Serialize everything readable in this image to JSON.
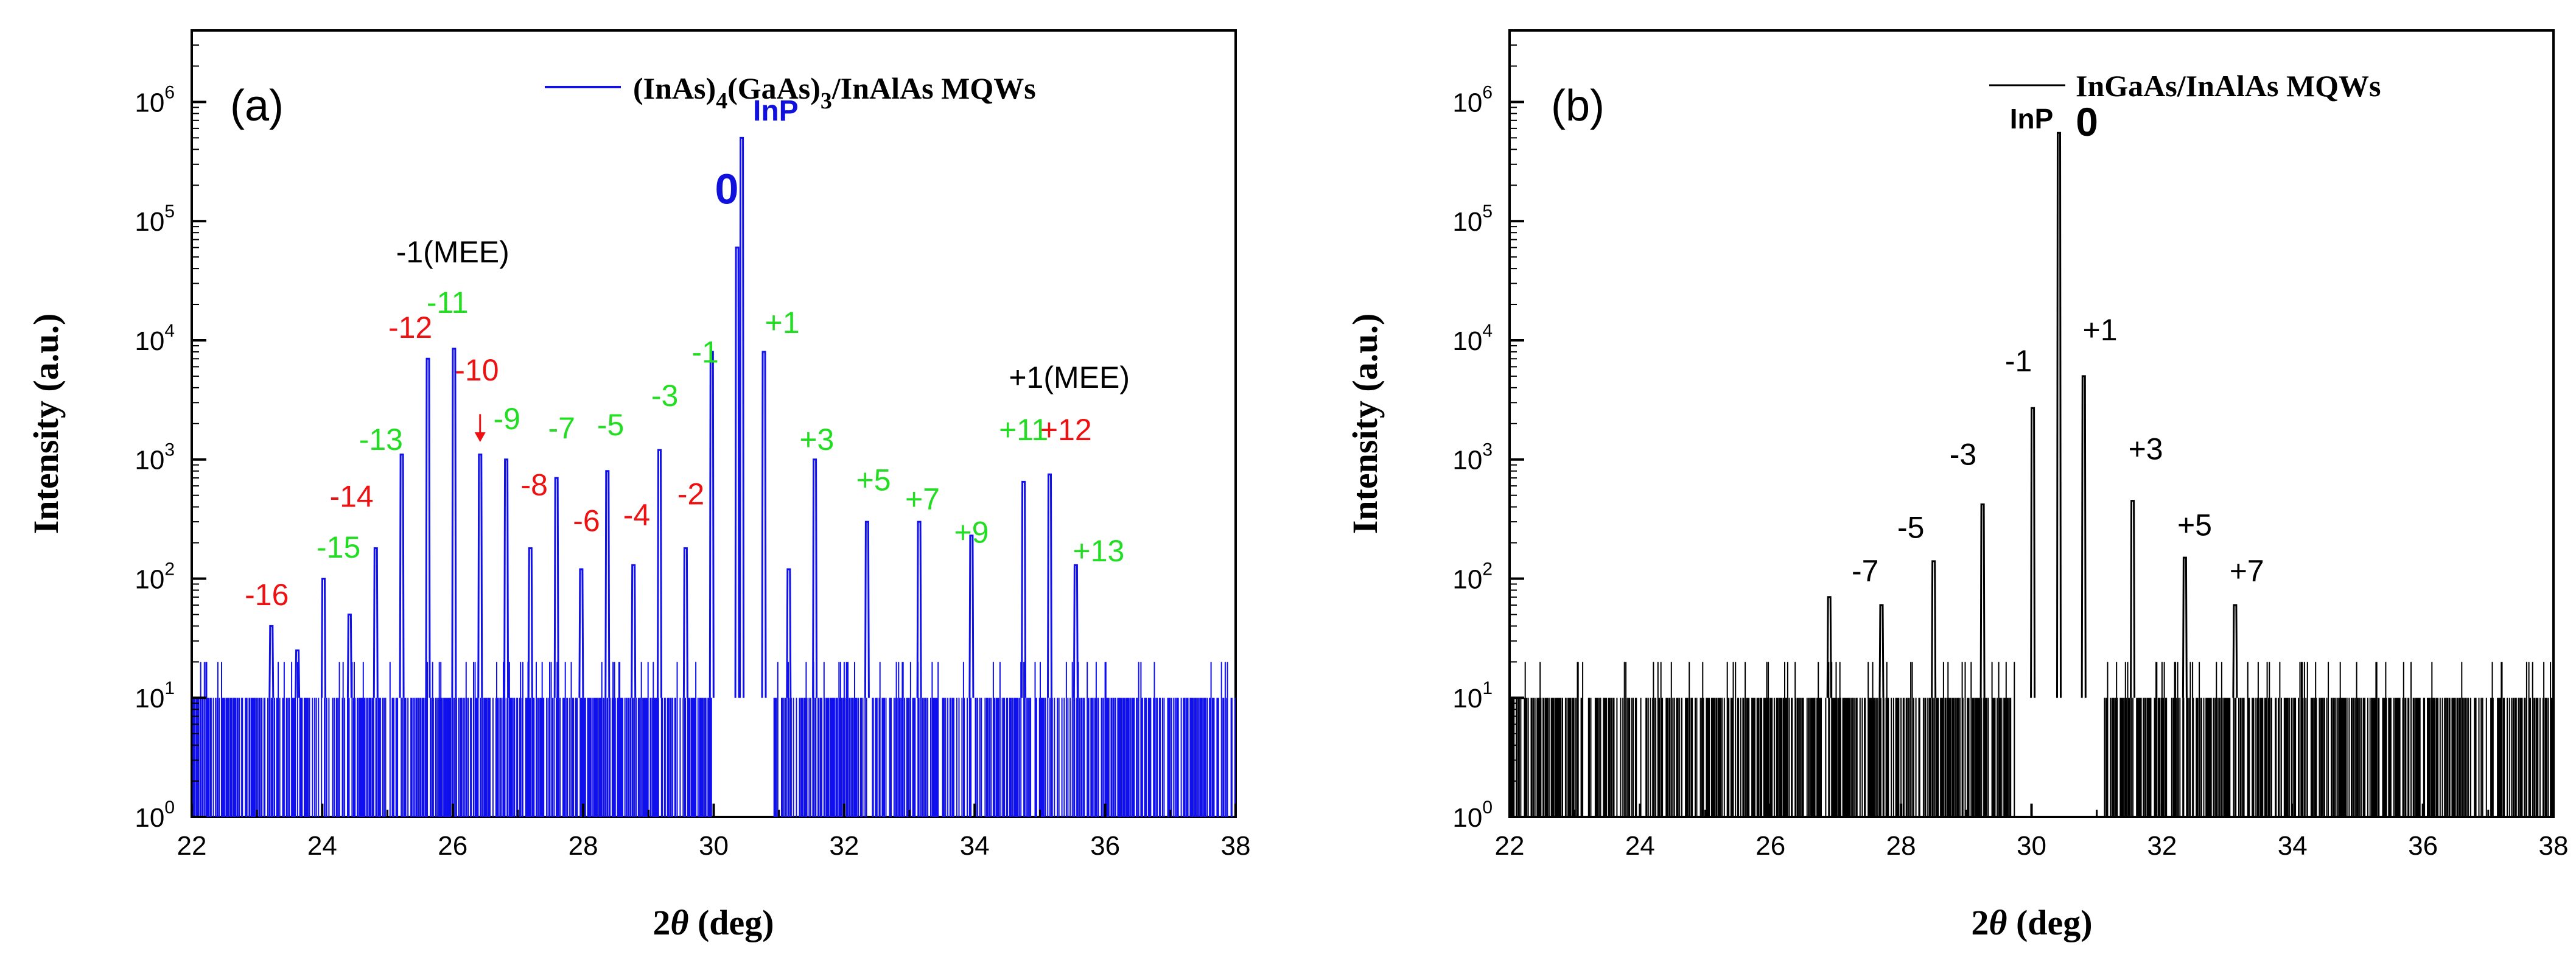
{
  "chart_data": [
    {
      "type": "line",
      "panel_label": "(a)",
      "legend": "(InAs)4(GaAs)3/InAlAs MQWs",
      "legend_parts": {
        "p1": "(InAs)",
        "s1": "4",
        "p2": "(GaAs)",
        "s2": "3",
        "p3": "/InAlAs MQWs"
      },
      "xlabel_main": "2",
      "xlabel_theta": "θ",
      "xlabel_unit": " (deg)",
      "ylabel": "Intensity (a.u.)",
      "xlim": [
        22,
        38
      ],
      "ylim_log10": [
        0,
        6.6
      ],
      "yscale": "log",
      "x_ticks": [
        "22",
        "24",
        "26",
        "28",
        "30",
        "32",
        "34",
        "36",
        "38"
      ],
      "y_ticks": [
        {
          "base": "10",
          "exp": "0"
        },
        {
          "base": "10",
          "exp": "1"
        },
        {
          "base": "10",
          "exp": "2"
        },
        {
          "base": "10",
          "exp": "3"
        },
        {
          "base": "10",
          "exp": "4"
        },
        {
          "base": "10",
          "exp": "5"
        },
        {
          "base": "10",
          "exp": "6"
        }
      ],
      "colors": {
        "series": "#1010ee",
        "red": "#ee1111",
        "green": "#22dd22",
        "blue": "#1111dd",
        "black": "#000000"
      },
      "noise_floor": 10,
      "gap_range": [
        30.0,
        30.9
      ],
      "peaks": [
        {
          "x": 23.22,
          "y": 40
        },
        {
          "x": 23.62,
          "y": 25
        },
        {
          "x": 24.02,
          "y": 100
        },
        {
          "x": 24.42,
          "y": 50
        },
        {
          "x": 24.82,
          "y": 180
        },
        {
          "x": 25.22,
          "y": 1100
        },
        {
          "x": 25.62,
          "y": 7000
        },
        {
          "x": 26.02,
          "y": 8500
        },
        {
          "x": 26.42,
          "y": 1100
        },
        {
          "x": 26.82,
          "y": 1000
        },
        {
          "x": 27.19,
          "y": 180
        },
        {
          "x": 27.59,
          "y": 700
        },
        {
          "x": 27.97,
          "y": 120
        },
        {
          "x": 28.37,
          "y": 800
        },
        {
          "x": 28.77,
          "y": 130
        },
        {
          "x": 29.17,
          "y": 1200
        },
        {
          "x": 29.57,
          "y": 180
        },
        {
          "x": 29.97,
          "y": 8000
        },
        {
          "x": 30.36,
          "y": 60000
        },
        {
          "x": 30.43,
          "y": 500000
        },
        {
          "x": 30.77,
          "y": 8000
        },
        {
          "x": 31.15,
          "y": 120
        },
        {
          "x": 31.55,
          "y": 1000
        },
        {
          "x": 32.35,
          "y": 300
        },
        {
          "x": 33.15,
          "y": 300
        },
        {
          "x": 33.95,
          "y": 230
        },
        {
          "x": 34.75,
          "y": 650
        },
        {
          "x": 35.15,
          "y": 750
        },
        {
          "x": 35.55,
          "y": 130
        }
      ],
      "annotations": [
        {
          "text": "-16",
          "x": 23.15,
          "y": 60,
          "color": "red"
        },
        {
          "text": "-15",
          "x": 24.25,
          "y": 150,
          "color": "green"
        },
        {
          "text": "-14",
          "x": 24.45,
          "y": 400,
          "color": "red"
        },
        {
          "text": "-13",
          "x": 24.9,
          "y": 1200,
          "color": "green"
        },
        {
          "text": "-12",
          "x": 25.35,
          "y": 10500,
          "color": "red"
        },
        {
          "text": "-11",
          "x": 25.92,
          "y": 17000,
          "color": "green"
        },
        {
          "text": "-10",
          "x": 26.37,
          "y": 4600,
          "color": "red"
        },
        {
          "text": "-9",
          "x": 26.83,
          "y": 1800,
          "color": "green"
        },
        {
          "text": "-8",
          "x": 27.25,
          "y": 500,
          "color": "red"
        },
        {
          "text": "-7",
          "x": 27.67,
          "y": 1500,
          "color": "green"
        },
        {
          "text": "-6",
          "x": 28.05,
          "y": 250,
          "color": "red"
        },
        {
          "text": "-5",
          "x": 28.42,
          "y": 1600,
          "color": "green"
        },
        {
          "text": "-4",
          "x": 28.82,
          "y": 280,
          "color": "red"
        },
        {
          "text": "-3",
          "x": 29.25,
          "y": 2800,
          "color": "green"
        },
        {
          "text": "-2",
          "x": 29.65,
          "y": 420,
          "color": "red"
        },
        {
          "text": "-1",
          "x": 29.87,
          "y": 6500,
          "color": "green"
        },
        {
          "text": "+1",
          "x": 31.05,
          "y": 11500,
          "color": "green"
        },
        {
          "text": "+3",
          "x": 31.58,
          "y": 1200,
          "color": "green"
        },
        {
          "text": "+5",
          "x": 32.45,
          "y": 550,
          "color": "green"
        },
        {
          "text": "+7",
          "x": 33.2,
          "y": 380,
          "color": "green"
        },
        {
          "text": "+9",
          "x": 33.95,
          "y": 200,
          "color": "green"
        },
        {
          "text": "+11",
          "x": 34.75,
          "y": 1450,
          "color": "green"
        },
        {
          "text": "+12",
          "x": 35.4,
          "y": 1450,
          "color": "red"
        },
        {
          "text": "+13",
          "x": 35.9,
          "y": 140,
          "color": "green"
        },
        {
          "text": "-1(MEE)",
          "x": 26.0,
          "y": 45000,
          "color": "black"
        },
        {
          "text": "+1(MEE)",
          "x": 35.45,
          "y": 4000,
          "color": "black"
        },
        {
          "text": "0",
          "x": 30.2,
          "y": 140000,
          "color": "blue",
          "size": 70,
          "bold": true
        },
        {
          "text": "InP",
          "x": 30.95,
          "y": 700000,
          "color": "blue",
          "size": 48,
          "bold": true
        }
      ],
      "arrow": {
        "x": 26.42,
        "y_from": 2400,
        "y_to": 1400,
        "color": "red"
      }
    },
    {
      "type": "line",
      "panel_label": "(b)",
      "legend": "InGaAs/InAlAs MQWs",
      "xlabel_main": "2",
      "xlabel_theta": "θ",
      "xlabel_unit": " (deg)",
      "ylabel": "Intensity (a.u.)",
      "xlim": [
        22,
        38
      ],
      "ylim_log10": [
        0,
        6.6
      ],
      "yscale": "log",
      "x_ticks": [
        "22",
        "24",
        "26",
        "28",
        "30",
        "32",
        "34",
        "36",
        "38"
      ],
      "y_ticks": [
        {
          "base": "10",
          "exp": "0"
        },
        {
          "base": "10",
          "exp": "1"
        },
        {
          "base": "10",
          "exp": "2"
        },
        {
          "base": "10",
          "exp": "3"
        },
        {
          "base": "10",
          "exp": "4"
        },
        {
          "base": "10",
          "exp": "5"
        },
        {
          "base": "10",
          "exp": "6"
        }
      ],
      "colors": {
        "series": "#000000",
        "black": "#000000"
      },
      "noise_floor": 10,
      "gap_range": [
        29.75,
        31.1
      ],
      "peaks": [
        {
          "x": 26.9,
          "y": 70
        },
        {
          "x": 27.7,
          "y": 60
        },
        {
          "x": 28.5,
          "y": 140
        },
        {
          "x": 29.25,
          "y": 420
        },
        {
          "x": 30.02,
          "y": 2700
        },
        {
          "x": 30.42,
          "y": 550000
        },
        {
          "x": 30.8,
          "y": 5000
        },
        {
          "x": 31.55,
          "y": 450
        },
        {
          "x": 32.35,
          "y": 150
        },
        {
          "x": 33.12,
          "y": 60
        }
      ],
      "annotations": [
        {
          "text": "-7",
          "x": 27.45,
          "y": 95,
          "color": "black"
        },
        {
          "text": "-5",
          "x": 28.15,
          "y": 220,
          "color": "black"
        },
        {
          "text": "-3",
          "x": 28.95,
          "y": 900,
          "color": "black"
        },
        {
          "text": "-1",
          "x": 29.8,
          "y": 5500,
          "color": "black"
        },
        {
          "text": "+1",
          "x": 31.05,
          "y": 10000,
          "color": "black"
        },
        {
          "text": "+3",
          "x": 31.75,
          "y": 1000,
          "color": "black"
        },
        {
          "text": "+5",
          "x": 32.5,
          "y": 230,
          "color": "black"
        },
        {
          "text": "+7",
          "x": 33.3,
          "y": 95,
          "color": "black"
        },
        {
          "text": "InP",
          "x": 30.0,
          "y": 600000,
          "color": "black",
          "size": 46,
          "bold": true
        },
        {
          "text": "0",
          "x": 30.85,
          "y": 520000,
          "color": "black",
          "size": 66,
          "bold": true
        }
      ]
    }
  ]
}
